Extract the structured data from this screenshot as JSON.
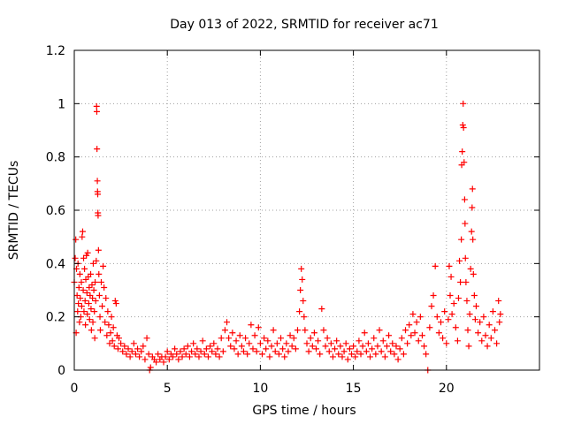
{
  "chart_data": {
    "type": "scatter",
    "title": "Day 013 of 2022, SRMTID for receiver ac71",
    "xlabel": "GPS time / hours",
    "ylabel": "SRMTID / TECUs",
    "xlim": [
      0,
      25
    ],
    "ylim": [
      0,
      1.2
    ],
    "grid": true,
    "marker": "+",
    "xticks": [
      "0",
      "5",
      "10",
      "15",
      "20"
    ],
    "yticks": [
      "0",
      "0.2",
      "0.4",
      "0.6",
      "0.8",
      "1",
      "1.2"
    ],
    "series": [
      {
        "name": "ac71",
        "color": "#ff0000",
        "points": [
          [
            0.0,
            0.33
          ],
          [
            0.05,
            0.42
          ],
          [
            0.08,
            0.49
          ],
          [
            0.1,
            0.14
          ],
          [
            0.12,
            0.38
          ],
          [
            0.15,
            0.28
          ],
          [
            0.18,
            0.22
          ],
          [
            0.2,
            0.4
          ],
          [
            0.22,
            0.25
          ],
          [
            0.25,
            0.31
          ],
          [
            0.28,
            0.18
          ],
          [
            0.3,
            0.36
          ],
          [
            0.32,
            0.27
          ],
          [
            0.35,
            0.2
          ],
          [
            0.38,
            0.33
          ],
          [
            0.4,
            0.24
          ],
          [
            0.42,
            0.5
          ],
          [
            0.45,
            0.52
          ],
          [
            0.48,
            0.3
          ],
          [
            0.5,
            0.42
          ],
          [
            0.52,
            0.22
          ],
          [
            0.55,
            0.38
          ],
          [
            0.58,
            0.26
          ],
          [
            0.6,
            0.17
          ],
          [
            0.62,
            0.34
          ],
          [
            0.65,
            0.43
          ],
          [
            0.68,
            0.29
          ],
          [
            0.7,
            0.21
          ],
          [
            0.72,
            0.44
          ],
          [
            0.75,
            0.35
          ],
          [
            0.78,
            0.25
          ],
          [
            0.8,
            0.31
          ],
          [
            0.82,
            0.19
          ],
          [
            0.85,
            0.28
          ],
          [
            0.88,
            0.36
          ],
          [
            0.9,
            0.23
          ],
          [
            0.92,
            0.15
          ],
          [
            0.95,
            0.32
          ],
          [
            0.98,
            0.27
          ],
          [
            1.0,
            0.18
          ],
          [
            1.02,
            0.4
          ],
          [
            1.05,
            0.3
          ],
          [
            1.08,
            0.22
          ],
          [
            1.1,
            0.12
          ],
          [
            1.12,
            0.33
          ],
          [
            1.15,
            0.26
          ],
          [
            1.18,
            0.41
          ],
          [
            1.2,
            0.99
          ],
          [
            1.21,
            0.97
          ],
          [
            1.22,
            0.83
          ],
          [
            1.24,
            0.71
          ],
          [
            1.25,
            0.67
          ],
          [
            1.26,
            0.66
          ],
          [
            1.27,
            0.59
          ],
          [
            1.28,
            0.58
          ],
          [
            1.3,
            0.45
          ],
          [
            1.32,
            0.36
          ],
          [
            1.35,
            0.28
          ],
          [
            1.38,
            0.2
          ],
          [
            1.4,
            0.15
          ],
          [
            1.45,
            0.33
          ],
          [
            1.5,
            0.24
          ],
          [
            1.55,
            0.39
          ],
          [
            1.6,
            0.31
          ],
          [
            1.65,
            0.18
          ],
          [
            1.7,
            0.27
          ],
          [
            1.75,
            0.13
          ],
          [
            1.8,
            0.22
          ],
          [
            1.85,
            0.17
          ],
          [
            1.9,
            0.1
          ],
          [
            1.95,
            0.14
          ],
          [
            2.0,
            0.2
          ],
          [
            2.05,
            0.11
          ],
          [
            2.1,
            0.16
          ],
          [
            2.15,
            0.09
          ],
          [
            2.2,
            0.26
          ],
          [
            2.25,
            0.25
          ],
          [
            2.3,
            0.13
          ],
          [
            2.35,
            0.08
          ],
          [
            2.4,
            0.12
          ],
          [
            2.5,
            0.1
          ],
          [
            2.6,
            0.07
          ],
          [
            2.7,
            0.09
          ],
          [
            2.8,
            0.06
          ],
          [
            2.9,
            0.08
          ],
          [
            3.0,
            0.05
          ],
          [
            3.1,
            0.07
          ],
          [
            3.2,
            0.1
          ],
          [
            3.3,
            0.06
          ],
          [
            3.4,
            0.08
          ],
          [
            3.5,
            0.05
          ],
          [
            3.6,
            0.07
          ],
          [
            3.7,
            0.09
          ],
          [
            3.8,
            0.04
          ],
          [
            3.9,
            0.12
          ],
          [
            4.0,
            0.06
          ],
          [
            4.05,
            0.0
          ],
          [
            4.1,
            0.01
          ],
          [
            4.2,
            0.05
          ],
          [
            4.3,
            0.04
          ],
          [
            4.4,
            0.03
          ],
          [
            4.5,
            0.06
          ],
          [
            4.6,
            0.04
          ],
          [
            4.7,
            0.05
          ],
          [
            4.8,
            0.03
          ],
          [
            4.9,
            0.05
          ],
          [
            5.0,
            0.07
          ],
          [
            5.1,
            0.04
          ],
          [
            5.2,
            0.06
          ],
          [
            5.3,
            0.05
          ],
          [
            5.4,
            0.08
          ],
          [
            5.5,
            0.06
          ],
          [
            5.6,
            0.04
          ],
          [
            5.7,
            0.07
          ],
          [
            5.8,
            0.05
          ],
          [
            5.9,
            0.08
          ],
          [
            6.0,
            0.06
          ],
          [
            6.1,
            0.09
          ],
          [
            6.2,
            0.05
          ],
          [
            6.3,
            0.07
          ],
          [
            6.4,
            0.1
          ],
          [
            6.5,
            0.06
          ],
          [
            6.6,
            0.08
          ],
          [
            6.7,
            0.05
          ],
          [
            6.8,
            0.07
          ],
          [
            6.9,
            0.11
          ],
          [
            7.0,
            0.06
          ],
          [
            7.1,
            0.08
          ],
          [
            7.2,
            0.05
          ],
          [
            7.3,
            0.09
          ],
          [
            7.4,
            0.07
          ],
          [
            7.5,
            0.1
          ],
          [
            7.6,
            0.06
          ],
          [
            7.7,
            0.08
          ],
          [
            7.8,
            0.05
          ],
          [
            7.9,
            0.12
          ],
          [
            8.0,
            0.07
          ],
          [
            8.1,
            0.15
          ],
          [
            8.2,
            0.18
          ],
          [
            8.3,
            0.12
          ],
          [
            8.4,
            0.09
          ],
          [
            8.5,
            0.14
          ],
          [
            8.6,
            0.08
          ],
          [
            8.7,
            0.11
          ],
          [
            8.8,
            0.06
          ],
          [
            8.9,
            0.13
          ],
          [
            9.0,
            0.09
          ],
          [
            9.1,
            0.07
          ],
          [
            9.2,
            0.12
          ],
          [
            9.3,
            0.06
          ],
          [
            9.4,
            0.1
          ],
          [
            9.5,
            0.17
          ],
          [
            9.6,
            0.08
          ],
          [
            9.7,
            0.13
          ],
          [
            9.8,
            0.07
          ],
          [
            9.9,
            0.16
          ],
          [
            10.0,
            0.1
          ],
          [
            10.1,
            0.06
          ],
          [
            10.2,
            0.12
          ],
          [
            10.3,
            0.08
          ],
          [
            10.4,
            0.11
          ],
          [
            10.5,
            0.05
          ],
          [
            10.6,
            0.09
          ],
          [
            10.7,
            0.15
          ],
          [
            10.8,
            0.07
          ],
          [
            10.9,
            0.1
          ],
          [
            11.0,
            0.06
          ],
          [
            11.1,
            0.12
          ],
          [
            11.2,
            0.08
          ],
          [
            11.3,
            0.05
          ],
          [
            11.4,
            0.1
          ],
          [
            11.5,
            0.07
          ],
          [
            11.6,
            0.13
          ],
          [
            11.7,
            0.09
          ],
          [
            11.8,
            0.12
          ],
          [
            11.9,
            0.08
          ],
          [
            12.0,
            0.15
          ],
          [
            12.1,
            0.22
          ],
          [
            12.15,
            0.3
          ],
          [
            12.2,
            0.38
          ],
          [
            12.25,
            0.34
          ],
          [
            12.3,
            0.26
          ],
          [
            12.35,
            0.2
          ],
          [
            12.4,
            0.15
          ],
          [
            12.5,
            0.1
          ],
          [
            12.6,
            0.07
          ],
          [
            12.7,
            0.12
          ],
          [
            12.8,
            0.09
          ],
          [
            12.9,
            0.14
          ],
          [
            13.0,
            0.08
          ],
          [
            13.1,
            0.11
          ],
          [
            13.2,
            0.06
          ],
          [
            13.3,
            0.23
          ],
          [
            13.4,
            0.15
          ],
          [
            13.5,
            0.09
          ],
          [
            13.6,
            0.12
          ],
          [
            13.7,
            0.07
          ],
          [
            13.8,
            0.1
          ],
          [
            13.9,
            0.05
          ],
          [
            14.0,
            0.08
          ],
          [
            14.1,
            0.11
          ],
          [
            14.2,
            0.06
          ],
          [
            14.3,
            0.09
          ],
          [
            14.4,
            0.05
          ],
          [
            14.5,
            0.07
          ],
          [
            14.6,
            0.1
          ],
          [
            14.7,
            0.04
          ],
          [
            14.8,
            0.08
          ],
          [
            14.9,
            0.06
          ],
          [
            15.0,
            0.09
          ],
          [
            15.1,
            0.05
          ],
          [
            15.2,
            0.07
          ],
          [
            15.3,
            0.11
          ],
          [
            15.4,
            0.06
          ],
          [
            15.5,
            0.09
          ],
          [
            15.6,
            0.14
          ],
          [
            15.7,
            0.07
          ],
          [
            15.8,
            0.1
          ],
          [
            15.9,
            0.05
          ],
          [
            16.0,
            0.08
          ],
          [
            16.1,
            0.12
          ],
          [
            16.2,
            0.06
          ],
          [
            16.3,
            0.09
          ],
          [
            16.4,
            0.15
          ],
          [
            16.5,
            0.07
          ],
          [
            16.6,
            0.11
          ],
          [
            16.7,
            0.05
          ],
          [
            16.8,
            0.09
          ],
          [
            16.9,
            0.13
          ],
          [
            17.0,
            0.07
          ],
          [
            17.1,
            0.1
          ],
          [
            17.2,
            0.06
          ],
          [
            17.3,
            0.09
          ],
          [
            17.4,
            0.04
          ],
          [
            17.5,
            0.08
          ],
          [
            17.6,
            0.12
          ],
          [
            17.7,
            0.06
          ],
          [
            17.8,
            0.15
          ],
          [
            17.9,
            0.1
          ],
          [
            18.0,
            0.17
          ],
          [
            18.1,
            0.13
          ],
          [
            18.2,
            0.21
          ],
          [
            18.3,
            0.14
          ],
          [
            18.4,
            0.18
          ],
          [
            18.5,
            0.11
          ],
          [
            18.6,
            0.2
          ],
          [
            18.7,
            0.13
          ],
          [
            18.8,
            0.09
          ],
          [
            18.9,
            0.06
          ],
          [
            19.0,
            0.0
          ],
          [
            19.1,
            0.16
          ],
          [
            19.2,
            0.24
          ],
          [
            19.3,
            0.28
          ],
          [
            19.4,
            0.39
          ],
          [
            19.5,
            0.2
          ],
          [
            19.6,
            0.14
          ],
          [
            19.7,
            0.18
          ],
          [
            19.8,
            0.12
          ],
          [
            19.9,
            0.22
          ],
          [
            20.0,
            0.1
          ],
          [
            20.1,
            0.19
          ],
          [
            20.15,
            0.39
          ],
          [
            20.2,
            0.28
          ],
          [
            20.25,
            0.35
          ],
          [
            20.3,
            0.21
          ],
          [
            20.4,
            0.25
          ],
          [
            20.5,
            0.16
          ],
          [
            20.6,
            0.11
          ],
          [
            20.65,
            0.27
          ],
          [
            20.7,
            0.41
          ],
          [
            20.75,
            0.33
          ],
          [
            20.8,
            0.49
          ],
          [
            20.82,
            0.77
          ],
          [
            20.85,
            0.82
          ],
          [
            20.88,
            0.92
          ],
          [
            20.9,
            1.0
          ],
          [
            20.92,
            0.91
          ],
          [
            20.95,
            0.78
          ],
          [
            20.98,
            0.64
          ],
          [
            21.0,
            0.55
          ],
          [
            21.02,
            0.42
          ],
          [
            21.05,
            0.33
          ],
          [
            21.1,
            0.26
          ],
          [
            21.15,
            0.15
          ],
          [
            21.2,
            0.09
          ],
          [
            21.25,
            0.21
          ],
          [
            21.3,
            0.38
          ],
          [
            21.35,
            0.52
          ],
          [
            21.38,
            0.61
          ],
          [
            21.4,
            0.68
          ],
          [
            21.42,
            0.49
          ],
          [
            21.45,
            0.36
          ],
          [
            21.5,
            0.28
          ],
          [
            21.55,
            0.19
          ],
          [
            21.6,
            0.24
          ],
          [
            21.7,
            0.14
          ],
          [
            21.8,
            0.18
          ],
          [
            21.9,
            0.11
          ],
          [
            22.0,
            0.2
          ],
          [
            22.1,
            0.13
          ],
          [
            22.2,
            0.09
          ],
          [
            22.3,
            0.17
          ],
          [
            22.4,
            0.12
          ],
          [
            22.5,
            0.22
          ],
          [
            22.6,
            0.15
          ],
          [
            22.7,
            0.1
          ],
          [
            22.8,
            0.26
          ],
          [
            22.85,
            0.18
          ],
          [
            22.9,
            0.21
          ]
        ]
      }
    ]
  }
}
